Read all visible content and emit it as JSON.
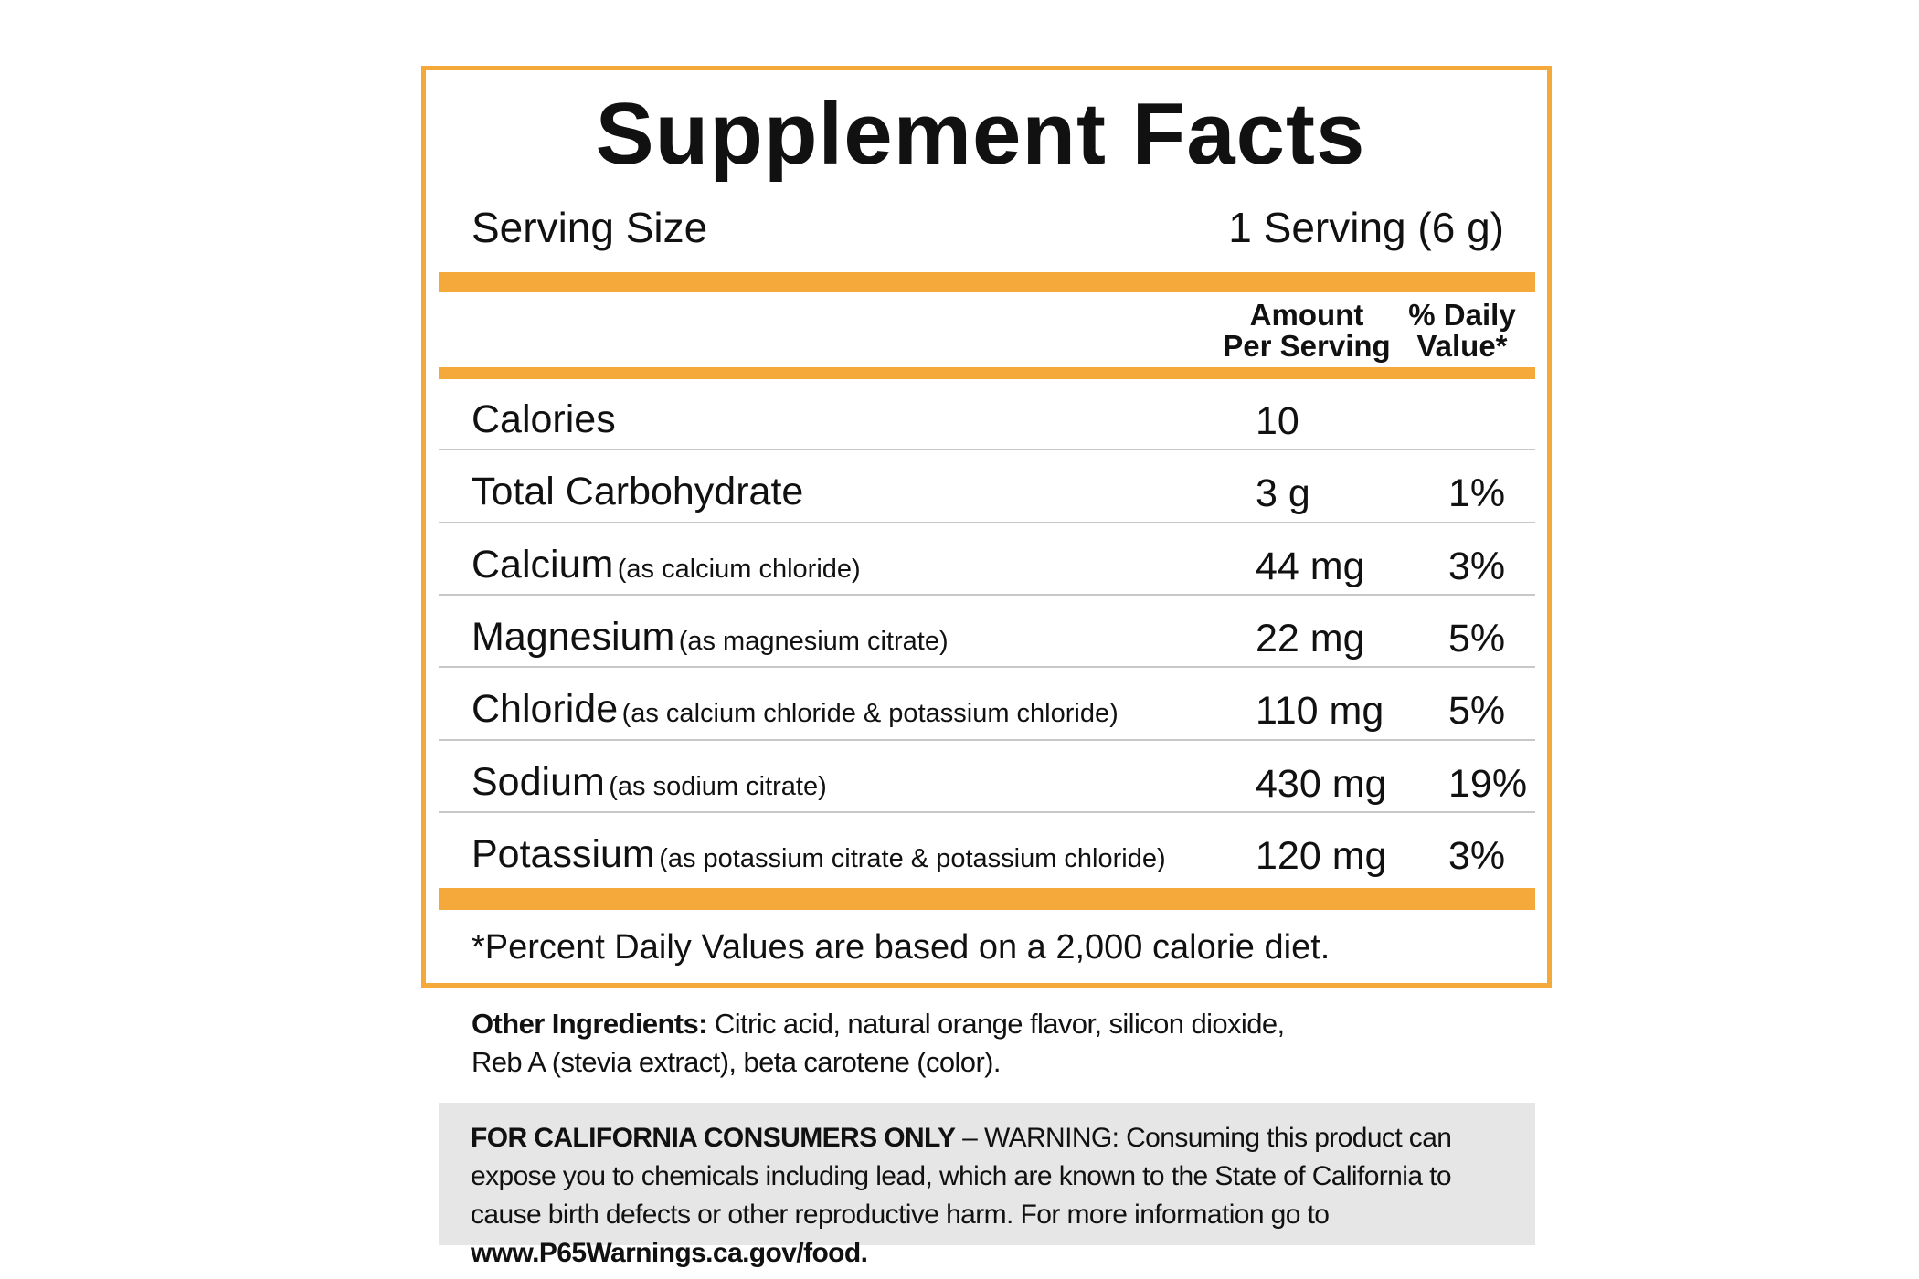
{
  "title": "Supplement Facts",
  "serving": {
    "label": "Serving Size",
    "value": "1 Serving (6 g)"
  },
  "columns": {
    "amount": [
      "Amount",
      "Per Serving"
    ],
    "dv": [
      "% Daily",
      "Value*"
    ]
  },
  "rows": [
    {
      "name": "Calories",
      "amount": "10"
    },
    {
      "name": "Total Carbohydrate",
      "amount": "3 g",
      "dv": "1%"
    },
    {
      "name": "Calcium",
      "note": "(as calcium chloride)",
      "amount": "44 mg",
      "dv": "3%"
    },
    {
      "name": "Magnesium",
      "note": "(as magnesium citrate)",
      "amount": "22 mg",
      "dv": "5%"
    },
    {
      "name": "Chloride",
      "note": "(as calcium chloride & potassium chloride)",
      "amount": "110 mg",
      "dv": "5%"
    },
    {
      "name": "Sodium",
      "note": "(as sodium citrate)",
      "amount": "430 mg",
      "dv": "19%"
    },
    {
      "name": "Potassium",
      "note": "(as potassium citrate & potassium chloride)",
      "amount": "120 mg",
      "dv": "3%"
    }
  ],
  "footnote": "*Percent Daily Values are based on a 2,000 calorie diet.",
  "other_ingredients": {
    "label": "Other Ingredients:",
    "lines": [
      "Citric acid, natural orange flavor, silicon dioxide,",
      "Reb A (stevia extract), beta carotene (color)."
    ]
  },
  "warning": {
    "label": "FOR CALIFORNIA CONSUMERS ONLY",
    "text": " – WARNING: Consuming this product can expose you to chemicals including lead, which are known to the State of California to cause birth defects or other reproductive harm. For more information go to ",
    "url": "www.P65Warnings.ca.gov/food."
  }
}
